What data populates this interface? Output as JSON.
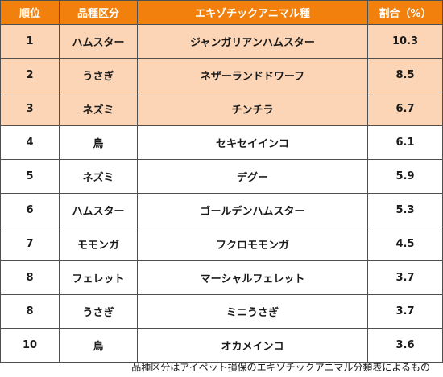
{
  "table": {
    "headers": {
      "rank": "順位",
      "category": "品種区分",
      "animal": "エキゾチックアニマル種",
      "share": "割合（%）"
    },
    "rows": [
      {
        "rank": "1",
        "category": "ハムスター",
        "animal": "ジャンガリアンハムスター",
        "share": "10.3",
        "highlight": true
      },
      {
        "rank": "2",
        "category": "うさぎ",
        "animal": "ネザーランドドワーフ",
        "share": "8.5",
        "highlight": true
      },
      {
        "rank": "3",
        "category": "ネズミ",
        "animal": "チンチラ",
        "share": "6.7",
        "highlight": true
      },
      {
        "rank": "4",
        "category": "鳥",
        "animal": "セキセイインコ",
        "share": "6.1",
        "highlight": false
      },
      {
        "rank": "5",
        "category": "ネズミ",
        "animal": "デグー",
        "share": "5.9",
        "highlight": false
      },
      {
        "rank": "6",
        "category": "ハムスター",
        "animal": "ゴールデンハムスター",
        "share": "5.3",
        "highlight": false
      },
      {
        "rank": "7",
        "category": "モモンガ",
        "animal": "フクロモモンガ",
        "share": "4.5",
        "highlight": false
      },
      {
        "rank": "8",
        "category": "フェレット",
        "animal": "マーシャルフェレット",
        "share": "3.7",
        "highlight": false
      },
      {
        "rank": "8",
        "category": "うさぎ",
        "animal": "ミニうさぎ",
        "share": "3.7",
        "highlight": false
      },
      {
        "rank": "10",
        "category": "鳥",
        "animal": "オカメインコ",
        "share": "3.6",
        "highlight": false
      }
    ]
  },
  "footnote": "品種区分はアイペット損保のエキゾチックアニマル分類表によるもの",
  "colors": {
    "header_bg": "#f2800d",
    "header_text": "#ffffff",
    "top3_bg": "#fbd5b5",
    "row_bg": "#ffffff",
    "border": "#4f4f4f"
  }
}
